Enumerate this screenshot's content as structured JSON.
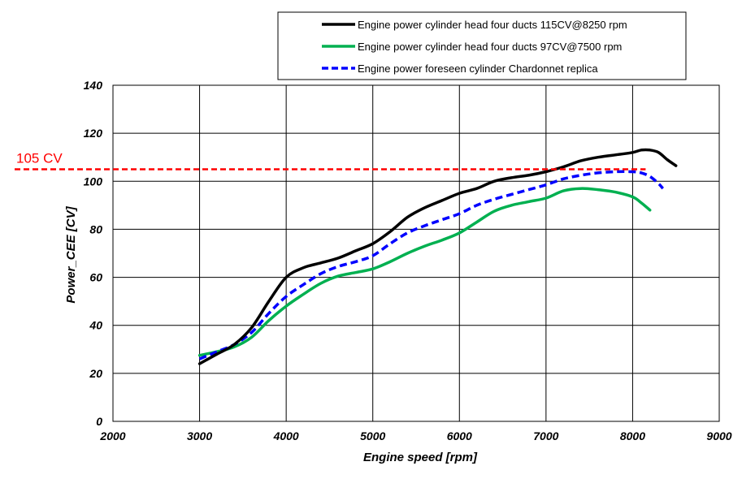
{
  "chart_data": {
    "type": "line",
    "title": "",
    "xlabel": "Engine speed [rpm]",
    "ylabel": "Power_CEE [CV]",
    "xlim": [
      2000,
      9000
    ],
    "ylim": [
      0,
      140
    ],
    "xticks": [
      2000,
      3000,
      4000,
      5000,
      6000,
      7000,
      8000,
      9000
    ],
    "yticks": [
      0,
      20,
      40,
      60,
      80,
      100,
      120,
      140
    ],
    "grid": true,
    "legend_position": "top-right",
    "series": [
      {
        "name": "Engine power cylinder head four ducts 115CV@8250 rpm",
        "color": "#000000",
        "style": "solid",
        "x": [
          3000,
          3200,
          3400,
          3600,
          3800,
          4000,
          4200,
          4400,
          4600,
          4800,
          5000,
          5200,
          5400,
          5600,
          5800,
          6000,
          6200,
          6400,
          6600,
          6800,
          7000,
          7200,
          7400,
          7600,
          7800,
          8000,
          8100,
          8200,
          8300,
          8400,
          8500
        ],
        "y": [
          24,
          28,
          32,
          39,
          50,
          60,
          64,
          66,
          68,
          71,
          74,
          79,
          85,
          89,
          92,
          95,
          97,
          100,
          101.5,
          102.5,
          104,
          106,
          108.5,
          110,
          111,
          112,
          113,
          113,
          112,
          109,
          106.5
        ]
      },
      {
        "name": "Engine power cylinder head four ducts 97CV@7500 rpm",
        "color": "#00b050",
        "style": "solid",
        "x": [
          3000,
          3200,
          3400,
          3600,
          3800,
          4000,
          4200,
          4400,
          4600,
          4800,
          5000,
          5200,
          5400,
          5600,
          5800,
          6000,
          6200,
          6400,
          6600,
          6800,
          7000,
          7200,
          7400,
          7600,
          7800,
          8000,
          8100,
          8200
        ],
        "y": [
          27.5,
          29,
          31,
          35,
          42,
          48,
          53,
          57.5,
          60.5,
          62,
          63.5,
          66.5,
          70,
          73,
          75.5,
          78.5,
          83,
          87.5,
          90,
          91.5,
          93,
          96,
          97,
          96.5,
          95.5,
          93.5,
          91,
          88
        ]
      },
      {
        "name": "Engine power foreseen cylinder Chardonnet replica",
        "color": "#0000ff",
        "style": "dashed",
        "x": [
          3000,
          3200,
          3400,
          3600,
          3800,
          4000,
          4200,
          4400,
          4600,
          4800,
          5000,
          5200,
          5400,
          5600,
          5800,
          6000,
          6200,
          6400,
          6600,
          6800,
          7000,
          7200,
          7400,
          7600,
          7800,
          8000,
          8100,
          8200,
          8300,
          8350
        ],
        "y": [
          26,
          29,
          32,
          37,
          45,
          52,
          57,
          61.5,
          64.5,
          66.5,
          69,
          74,
          78.5,
          81.5,
          84,
          86.5,
          90,
          92.5,
          94.5,
          96.5,
          98.5,
          101,
          102.5,
          103.5,
          104,
          104,
          103.5,
          102,
          99,
          97
        ]
      }
    ],
    "annotations": [
      {
        "type": "hline",
        "y": 105,
        "x_start": 1800,
        "x_end": 8150,
        "color": "#ff0000",
        "style": "dashed",
        "label": "105 CV"
      }
    ]
  }
}
